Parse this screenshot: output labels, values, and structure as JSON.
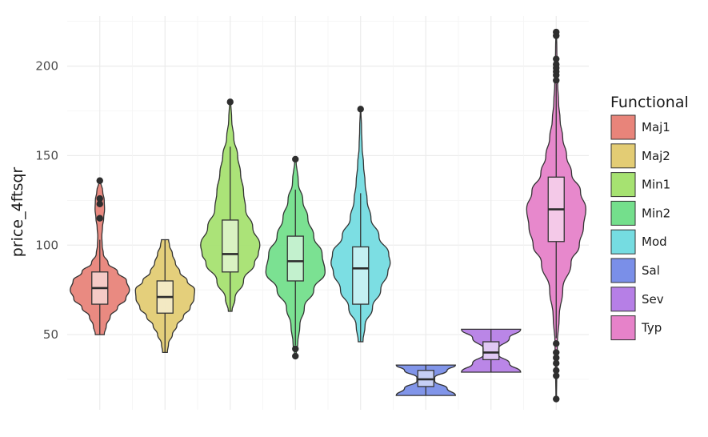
{
  "chart_data": {
    "type": "violin",
    "title": "",
    "xlabel": "",
    "ylabel": "price_4ftsqr",
    "ylim": [
      8,
      228
    ],
    "yticks": [
      50,
      100,
      150,
      200
    ],
    "categories": [
      "Maj1",
      "Maj2",
      "Min1",
      "Min2",
      "Mod",
      "Sal",
      "Sev",
      "Typ"
    ],
    "x_tick_labels_shown": false,
    "legend": {
      "title": "Functional",
      "position": "right"
    },
    "grid": true,
    "colors": [
      "#e8847a",
      "#e3cc74",
      "#a6e271",
      "#74df8c",
      "#75dce1",
      "#7a8fe8",
      "#b67fe6",
      "#e682c9"
    ],
    "series": [
      {
        "category": "Maj1",
        "violin_min": 50,
        "violin_max": 136,
        "q1": 67,
        "median": 76,
        "q3": 85,
        "whisker_low": 50,
        "whisker_high": 103,
        "outliers": [
          115,
          123,
          126,
          136
        ],
        "density": [
          [
            50,
            0.15
          ],
          [
            55,
            0.22
          ],
          [
            60,
            0.35
          ],
          [
            65,
            0.6
          ],
          [
            70,
            0.88
          ],
          [
            75,
            1.0
          ],
          [
            80,
            0.9
          ],
          [
            85,
            0.6
          ],
          [
            90,
            0.28
          ],
          [
            95,
            0.12
          ],
          [
            100,
            0.08
          ],
          [
            105,
            0.07
          ],
          [
            110,
            0.09
          ],
          [
            115,
            0.13
          ],
          [
            120,
            0.16
          ],
          [
            125,
            0.15
          ],
          [
            130,
            0.1
          ],
          [
            136,
            0.02
          ]
        ]
      },
      {
        "category": "Maj2",
        "violin_min": 40,
        "violin_max": 103,
        "q1": 62,
        "median": 71,
        "q3": 80,
        "whisker_low": 40,
        "whisker_high": 103,
        "outliers": [],
        "density": [
          [
            40,
            0.08
          ],
          [
            45,
            0.12
          ],
          [
            50,
            0.25
          ],
          [
            55,
            0.4
          ],
          [
            60,
            0.62
          ],
          [
            65,
            0.85
          ],
          [
            70,
            0.98
          ],
          [
            75,
            1.0
          ],
          [
            80,
            0.75
          ],
          [
            85,
            0.5
          ],
          [
            90,
            0.35
          ],
          [
            95,
            0.25
          ],
          [
            100,
            0.15
          ],
          [
            103,
            0.12
          ]
        ]
      },
      {
        "category": "Min1",
        "violin_min": 63,
        "violin_max": 180,
        "q1": 85,
        "median": 95,
        "q3": 114,
        "whisker_low": 63,
        "whisker_high": 155,
        "outliers": [
          180
        ],
        "density": [
          [
            63,
            0.06
          ],
          [
            70,
            0.16
          ],
          [
            80,
            0.45
          ],
          [
            90,
            0.82
          ],
          [
            95,
            0.95
          ],
          [
            100,
            1.0
          ],
          [
            110,
            0.76
          ],
          [
            120,
            0.52
          ],
          [
            130,
            0.45
          ],
          [
            140,
            0.35
          ],
          [
            150,
            0.25
          ],
          [
            160,
            0.12
          ],
          [
            170,
            0.05
          ],
          [
            180,
            0.02
          ]
        ]
      },
      {
        "category": "Min2",
        "violin_min": 38,
        "violin_max": 148,
        "q1": 80,
        "median": 91,
        "q3": 105,
        "whisker_low": 44,
        "whisker_high": 131,
        "outliers": [
          38,
          42,
          148
        ],
        "density": [
          [
            38,
            0.02
          ],
          [
            45,
            0.08
          ],
          [
            55,
            0.15
          ],
          [
            65,
            0.3
          ],
          [
            75,
            0.62
          ],
          [
            85,
            1.0
          ],
          [
            95,
            0.9
          ],
          [
            105,
            0.62
          ],
          [
            115,
            0.42
          ],
          [
            125,
            0.25
          ],
          [
            135,
            0.1
          ],
          [
            148,
            0.02
          ]
        ]
      },
      {
        "category": "Mod",
        "violin_min": 46,
        "violin_max": 176,
        "q1": 67,
        "median": 87,
        "q3": 99,
        "whisker_low": 46,
        "whisker_high": 129,
        "outliers": [
          176
        ],
        "density": [
          [
            46,
            0.08
          ],
          [
            55,
            0.15
          ],
          [
            65,
            0.4
          ],
          [
            75,
            0.68
          ],
          [
            85,
            0.92
          ],
          [
            90,
            1.0
          ],
          [
            95,
            0.95
          ],
          [
            105,
            0.62
          ],
          [
            115,
            0.35
          ],
          [
            125,
            0.22
          ],
          [
            135,
            0.15
          ],
          [
            145,
            0.1
          ],
          [
            155,
            0.05
          ],
          [
            165,
            0.03
          ],
          [
            176,
            0.01
          ]
        ]
      },
      {
        "category": "Sal",
        "violin_min": 16,
        "violin_max": 33,
        "q1": 21,
        "median": 25,
        "q3": 30,
        "whisker_low": 16,
        "whisker_high": 33,
        "outliers": [],
        "density": [
          [
            16,
            1.0
          ],
          [
            20,
            0.72
          ],
          [
            24,
            0.3
          ],
          [
            26,
            0.3
          ],
          [
            30,
            0.72
          ],
          [
            33,
            1.0
          ]
        ]
      },
      {
        "category": "Sev",
        "violin_min": 29,
        "violin_max": 53,
        "q1": 36,
        "median": 40,
        "q3": 46,
        "whisker_low": 29,
        "whisker_high": 53,
        "outliers": [],
        "density": [
          [
            29,
            1.0
          ],
          [
            34,
            0.62
          ],
          [
            39,
            0.25
          ],
          [
            42,
            0.25
          ],
          [
            48,
            0.62
          ],
          [
            53,
            1.0
          ]
        ]
      },
      {
        "category": "Typ",
        "violin_min": 14,
        "violin_max": 219,
        "q1": 102,
        "median": 120,
        "q3": 138,
        "whisker_low": 48,
        "whisker_high": 190,
        "outliers": [
          14,
          27,
          30,
          34,
          37,
          40,
          45,
          192,
          195,
          197,
          199,
          201,
          204,
          217,
          219
        ],
        "density": [
          [
            14,
            0.01
          ],
          [
            30,
            0.02
          ],
          [
            45,
            0.04
          ],
          [
            60,
            0.1
          ],
          [
            75,
            0.22
          ],
          [
            90,
            0.5
          ],
          [
            100,
            0.78
          ],
          [
            110,
            0.92
          ],
          [
            120,
            1.0
          ],
          [
            130,
            0.82
          ],
          [
            140,
            0.52
          ],
          [
            150,
            0.35
          ],
          [
            160,
            0.22
          ],
          [
            170,
            0.13
          ],
          [
            180,
            0.08
          ],
          [
            190,
            0.05
          ],
          [
            200,
            0.03
          ],
          [
            210,
            0.02
          ],
          [
            219,
            0.01
          ]
        ]
      }
    ]
  }
}
